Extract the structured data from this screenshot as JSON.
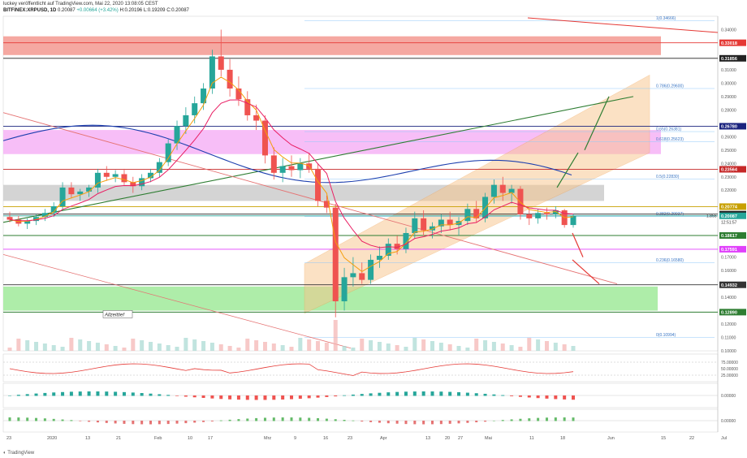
{
  "header": {
    "line1": "luckey veröffentlicht auf TradingView.com, Mai 22, 2020 13:08:05 CEST",
    "symbol": "BITFINEX:XRPUSD, 1D",
    "open": "0.20087",
    "change": "+0.00664 (+3.42%)",
    "high": "H:0.20196",
    "low": "L:0.19209",
    "close": "C:0.20087"
  },
  "footer": {
    "brand": "TradingView"
  },
  "chart_data": {
    "type": "line",
    "title": "",
    "y_axis": {
      "range": [
        0.1,
        0.35
      ],
      "tick_labels": [
        "0.34000",
        "0.32000",
        "0.31000",
        "0.30000",
        "0.29000",
        "0.28000",
        "0.27000",
        "0.26000",
        "0.25000",
        "0.24000",
        "0.23000",
        "0.22000",
        "0.21000",
        "0.20000",
        "0.19000",
        "0.18000",
        "0.17000",
        "0.16000",
        "0.15000",
        "0.14000",
        "0.13000",
        "0.12000",
        "0.11000",
        "0.10000"
      ]
    },
    "x_axis": {
      "tick_labels": [
        "23",
        "2020",
        "13",
        "21",
        "Feb",
        "10",
        "17",
        "Mrz",
        "9",
        "16",
        "23",
        "Apr",
        "13",
        "20",
        "27",
        "Mai",
        "11",
        "18",
        "Jun",
        "15",
        "22",
        "Jul"
      ]
    },
    "price_levels": [
      {
        "value": 0.33018,
        "label": "0.33018",
        "color": "#e53935"
      },
      {
        "value": 0.31856,
        "label": "0.31856",
        "color": "#222222"
      },
      {
        "value": 0.2678,
        "label": "0.26780",
        "color": "#1a237e"
      },
      {
        "value": 0.23564,
        "label": "0.23564",
        "color": "#c62828"
      },
      {
        "value": 0.20774,
        "label": "0.20774",
        "color": "#c8a000"
      },
      {
        "value": 0.20214,
        "label": "0.20214",
        "color": "#222222"
      },
      {
        "value": 0.20087,
        "label": "0.20087",
        "color": "#26a69a"
      },
      {
        "value": 0.18617,
        "label": "0.18617",
        "color": "#2e7d32"
      },
      {
        "value": 0.17591,
        "label": "0.17591",
        "color": "#e040fb"
      },
      {
        "value": 0.14932,
        "label": "0.14932",
        "color": "#333333"
      },
      {
        "value": 0.1289,
        "label": "0.12890",
        "color": "#2e7d32"
      }
    ],
    "price_labels_extra": [
      "1.855",
      "12:51:57"
    ],
    "fib_levels": [
      {
        "label": "1(0.34666)",
        "value": 0.34666
      },
      {
        "label": "0.786(0.29600)",
        "value": 0.296
      },
      {
        "label": "0.65(0.26381)",
        "value": 0.26381
      },
      {
        "label": "0.618(0.25623)",
        "value": 0.25623
      },
      {
        "label": "0.5(0.22830)",
        "value": 0.2283
      },
      {
        "label": "0.382(0.20037)",
        "value": 0.20037
      },
      {
        "label": "0.236(0.16580)",
        "value": 0.1658
      },
      {
        "label": "0(0.10994)",
        "value": 0.10994
      }
    ],
    "annotation": "Allzeittief",
    "rsi_axis": [
      "75.00000",
      "50.00000",
      "25.00000"
    ],
    "macd_axis": [
      "0.00000"
    ],
    "lower_axis": [
      "0.00000"
    ],
    "candles": [
      [
        0.2,
        0.204,
        0.196,
        0.198
      ],
      [
        0.198,
        0.201,
        0.193,
        0.195
      ],
      [
        0.195,
        0.199,
        0.191,
        0.197
      ],
      [
        0.197,
        0.202,
        0.194,
        0.2
      ],
      [
        0.2,
        0.206,
        0.197,
        0.203
      ],
      [
        0.203,
        0.211,
        0.2,
        0.208
      ],
      [
        0.208,
        0.226,
        0.205,
        0.222
      ],
      [
        0.222,
        0.226,
        0.214,
        0.217
      ],
      [
        0.217,
        0.221,
        0.212,
        0.219
      ],
      [
        0.219,
        0.224,
        0.215,
        0.222
      ],
      [
        0.222,
        0.236,
        0.218,
        0.233
      ],
      [
        0.233,
        0.238,
        0.227,
        0.23
      ],
      [
        0.23,
        0.235,
        0.226,
        0.232
      ],
      [
        0.232,
        0.236,
        0.224,
        0.226
      ],
      [
        0.226,
        0.23,
        0.218,
        0.223
      ],
      [
        0.223,
        0.232,
        0.22,
        0.229
      ],
      [
        0.229,
        0.236,
        0.226,
        0.233
      ],
      [
        0.233,
        0.244,
        0.23,
        0.241
      ],
      [
        0.241,
        0.258,
        0.238,
        0.255
      ],
      [
        0.255,
        0.272,
        0.25,
        0.268
      ],
      [
        0.268,
        0.282,
        0.262,
        0.276
      ],
      [
        0.276,
        0.29,
        0.27,
        0.285
      ],
      [
        0.285,
        0.3,
        0.28,
        0.296
      ],
      [
        0.296,
        0.325,
        0.292,
        0.32
      ],
      [
        0.32,
        0.34,
        0.305,
        0.31
      ],
      [
        0.31,
        0.318,
        0.29,
        0.296
      ],
      [
        0.296,
        0.305,
        0.283,
        0.288
      ],
      [
        0.288,
        0.294,
        0.272,
        0.276
      ],
      [
        0.276,
        0.284,
        0.265,
        0.272
      ],
      [
        0.272,
        0.276,
        0.24,
        0.246
      ],
      [
        0.246,
        0.252,
        0.228,
        0.233
      ],
      [
        0.233,
        0.244,
        0.226,
        0.238
      ],
      [
        0.238,
        0.246,
        0.23,
        0.235
      ],
      [
        0.235,
        0.244,
        0.229,
        0.24
      ],
      [
        0.24,
        0.248,
        0.233,
        0.236
      ],
      [
        0.236,
        0.24,
        0.208,
        0.212
      ],
      [
        0.212,
        0.216,
        0.203,
        0.207
      ],
      [
        0.207,
        0.21,
        0.125,
        0.137
      ],
      [
        0.137,
        0.162,
        0.13,
        0.155
      ],
      [
        0.155,
        0.17,
        0.148,
        0.158
      ],
      [
        0.158,
        0.166,
        0.15,
        0.153
      ],
      [
        0.153,
        0.172,
        0.15,
        0.168
      ],
      [
        0.168,
        0.178,
        0.162,
        0.171
      ],
      [
        0.171,
        0.184,
        0.168,
        0.18
      ],
      [
        0.18,
        0.186,
        0.172,
        0.176
      ],
      [
        0.176,
        0.192,
        0.173,
        0.188
      ],
      [
        0.188,
        0.204,
        0.184,
        0.199
      ],
      [
        0.199,
        0.205,
        0.186,
        0.19
      ],
      [
        0.19,
        0.196,
        0.184,
        0.193
      ],
      [
        0.193,
        0.202,
        0.188,
        0.198
      ],
      [
        0.198,
        0.204,
        0.19,
        0.194
      ],
      [
        0.194,
        0.2,
        0.186,
        0.197
      ],
      [
        0.197,
        0.21,
        0.194,
        0.206
      ],
      [
        0.206,
        0.212,
        0.196,
        0.199
      ],
      [
        0.199,
        0.218,
        0.196,
        0.215
      ],
      [
        0.215,
        0.228,
        0.21,
        0.224
      ],
      [
        0.224,
        0.23,
        0.212,
        0.218
      ],
      [
        0.218,
        0.224,
        0.21,
        0.221
      ],
      [
        0.221,
        0.223,
        0.198,
        0.202
      ],
      [
        0.202,
        0.206,
        0.194,
        0.199
      ],
      [
        0.199,
        0.206,
        0.195,
        0.203
      ],
      [
        0.203,
        0.207,
        0.198,
        0.202
      ],
      [
        0.202,
        0.208,
        0.199,
        0.205
      ],
      [
        0.205,
        0.206,
        0.192,
        0.194
      ],
      [
        0.194,
        0.202,
        0.192,
        0.201
      ]
    ]
  }
}
